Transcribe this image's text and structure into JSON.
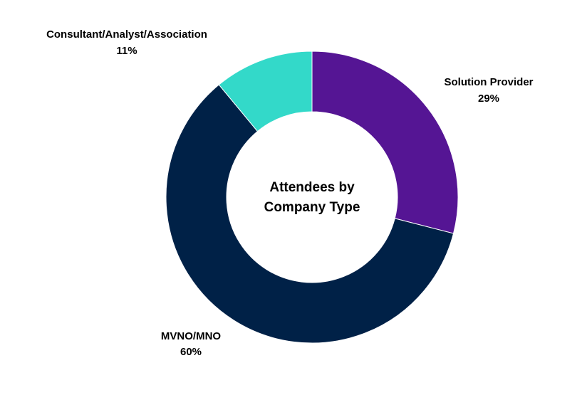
{
  "chart_data": {
    "type": "pie",
    "variant": "donut",
    "title_lines": [
      "Attendees by",
      "Company Type"
    ],
    "legend": "none",
    "slices": [
      {
        "label": "Solution Provider",
        "value": 29,
        "value_label": "29%",
        "color": "#551594"
      },
      {
        "label": "MVNO/MNO",
        "value": 60,
        "value_label": "60%",
        "color": "#002147"
      },
      {
        "label": "Consultant/Analyst/Association",
        "value": 11,
        "value_label": "11%",
        "color": "#33d9c9"
      }
    ]
  }
}
